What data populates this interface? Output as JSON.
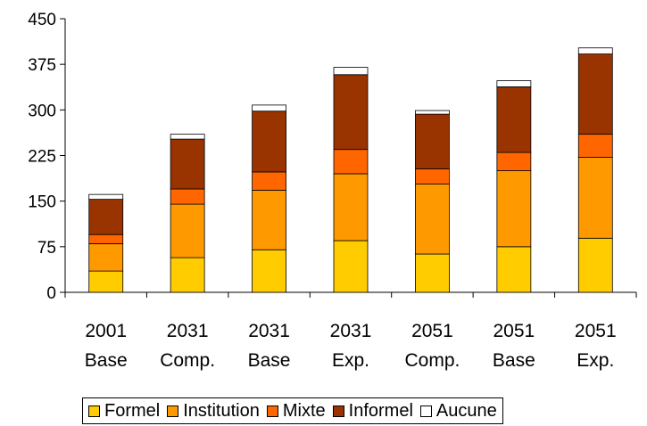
{
  "chart_data": {
    "type": "bar",
    "stacked": true,
    "categories": [
      [
        "2001",
        "Base"
      ],
      [
        "2031",
        "Comp."
      ],
      [
        "2031",
        "Base"
      ],
      [
        "2031",
        "Exp."
      ],
      [
        "2051",
        "Comp."
      ],
      [
        "2051",
        "Base"
      ],
      [
        "2051",
        "Exp."
      ]
    ],
    "series": [
      {
        "name": "Formel",
        "color": "#FFCC00",
        "values": [
          35,
          57,
          70,
          85,
          63,
          75,
          89
        ]
      },
      {
        "name": "Institution",
        "color": "#FF9900",
        "values": [
          45,
          88,
          98,
          110,
          115,
          125,
          133
        ]
      },
      {
        "name": "Mixte",
        "color": "#FF6600",
        "values": [
          15,
          25,
          30,
          40,
          25,
          30,
          38
        ]
      },
      {
        "name": "Informel",
        "color": "#993300",
        "values": [
          58,
          82,
          100,
          123,
          90,
          108,
          132
        ]
      },
      {
        "name": "Aucune",
        "color": "#FFFFFF",
        "values": [
          8,
          8,
          10,
          12,
          6,
          10,
          10
        ]
      }
    ],
    "ylim": [
      0,
      450
    ],
    "yticks": [
      "0",
      "75",
      "150",
      "225",
      "300",
      "375",
      "450"
    ],
    "grid": false,
    "legend_position": "bottom",
    "title": "",
    "xlabel": "",
    "ylabel": ""
  }
}
